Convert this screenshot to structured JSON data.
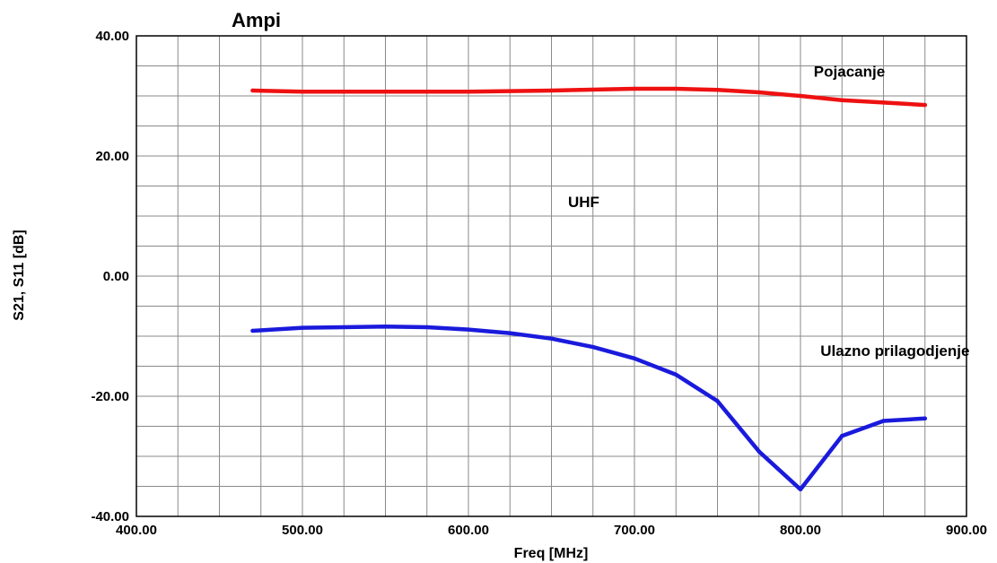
{
  "chart_data": {
    "type": "line",
    "title": "Ampi",
    "xlabel": "Freq [MHz]",
    "ylabel": "S21, S11 [dB]",
    "xlim": [
      400,
      900
    ],
    "ylim": [
      -40,
      40
    ],
    "x_ticks": [
      "400.00",
      "500.00",
      "600.00",
      "700.00",
      "800.00",
      "900.00"
    ],
    "y_ticks": [
      "40.00",
      "20.00",
      "0.00",
      "-20.00",
      "-40.00"
    ],
    "grid": true,
    "colors": {
      "s21": "#ee1111",
      "s11": "#1a1adc",
      "grid": "#8a8a8a"
    },
    "series": [
      {
        "key": "s21",
        "x": [
          470,
          500,
          550,
          600,
          650,
          700,
          725,
          750,
          775,
          800,
          825,
          850,
          875
        ],
        "values": [
          30.9,
          30.7,
          30.7,
          30.7,
          30.9,
          31.2,
          31.2,
          31.0,
          30.6,
          30.0,
          29.3,
          28.9,
          28.5
        ]
      },
      {
        "key": "s11",
        "x": [
          470,
          500,
          550,
          575,
          600,
          625,
          650,
          675,
          700,
          725,
          750,
          775,
          800,
          825,
          850,
          875
        ],
        "values": [
          -9.1,
          -8.6,
          -8.4,
          -8.5,
          -8.9,
          -9.5,
          -10.4,
          -11.8,
          -13.7,
          -16.4,
          -20.8,
          -29.2,
          -35.5,
          -26.6,
          -24.1,
          -23.7
        ]
      }
    ],
    "annotations": [
      {
        "text": "Pojacanje",
        "x": 808,
        "y": 33.2
      },
      {
        "text": "UHF",
        "x": 660,
        "y": 11.5
      },
      {
        "text": "Ulazno prilagodjenje",
        "x": 812,
        "y": -13.3
      }
    ]
  }
}
